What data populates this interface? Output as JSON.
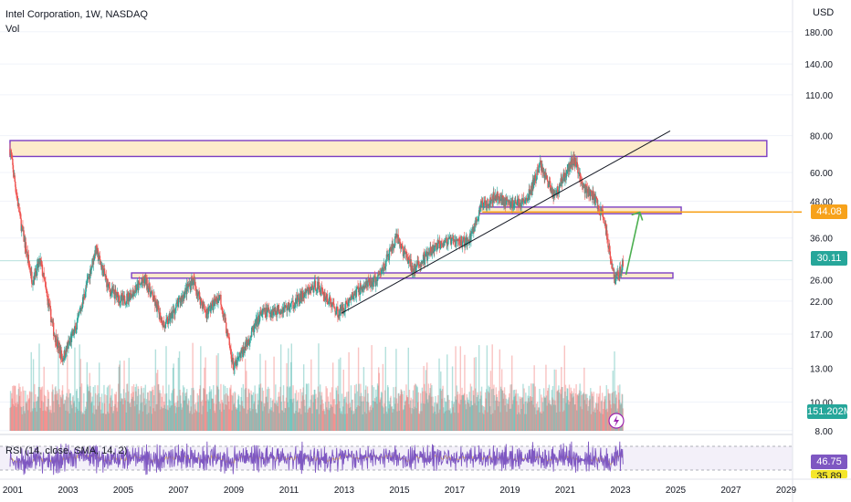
{
  "header": {
    "title": "Intel Corporation, 1W, NASDAQ",
    "volume_label": "Vol",
    "currency": "USD"
  },
  "rsi_label": "RSI (14, close, SMA, 14, 2)",
  "colors": {
    "up": "#26a69a",
    "down": "#ef5350",
    "zone_fill": "#fde7c2",
    "zone_border": "#7b3fc4",
    "resistance_line": "#f7a21b",
    "arrow": "#4caf50",
    "rsi_line": "#7e57c2",
    "rsi_signal": "#f0c330",
    "last_price": "#26a69a",
    "volume_tag": "#26a69a",
    "rsi_tag": "#7e57c2"
  },
  "chart_data": {
    "type": "candlestick",
    "title": "Intel Corporation, 1W, NASDAQ",
    "y_scale": "log",
    "y_unit": "USD",
    "y_ticks": [
      "180.00",
      "140.00",
      "110.00",
      "80.00",
      "60.00",
      "48.00",
      "36.00",
      "26.00",
      "22.00",
      "17.00",
      "13.00",
      "10.00",
      "8.00"
    ],
    "x_ticks": [
      "2001",
      "2003",
      "2005",
      "2007",
      "2009",
      "2011",
      "2013",
      "2015",
      "2017",
      "2019",
      "2021",
      "2023",
      "2025",
      "2027",
      "2029"
    ],
    "price_path": [
      {
        "date": 2000.9,
        "close": 72
      },
      {
        "date": 2001.3,
        "close": 40
      },
      {
        "date": 2001.7,
        "close": 26
      },
      {
        "date": 2002.0,
        "close": 30
      },
      {
        "date": 2002.5,
        "close": 17
      },
      {
        "date": 2002.8,
        "close": 14
      },
      {
        "date": 2003.3,
        "close": 18
      },
      {
        "date": 2004.0,
        "close": 33
      },
      {
        "date": 2004.5,
        "close": 24
      },
      {
        "date": 2005.0,
        "close": 22
      },
      {
        "date": 2005.8,
        "close": 26
      },
      {
        "date": 2006.5,
        "close": 18
      },
      {
        "date": 2007.5,
        "close": 26
      },
      {
        "date": 2008.0,
        "close": 20
      },
      {
        "date": 2008.5,
        "close": 23
      },
      {
        "date": 2009.0,
        "close": 13
      },
      {
        "date": 2009.5,
        "close": 16
      },
      {
        "date": 2010.0,
        "close": 20
      },
      {
        "date": 2011.0,
        "close": 21
      },
      {
        "date": 2012.0,
        "close": 25
      },
      {
        "date": 2012.8,
        "close": 20
      },
      {
        "date": 2013.5,
        "close": 24
      },
      {
        "date": 2014.2,
        "close": 26
      },
      {
        "date": 2014.9,
        "close": 36
      },
      {
        "date": 2015.5,
        "close": 28
      },
      {
        "date": 2016.5,
        "close": 35
      },
      {
        "date": 2017.5,
        "close": 35
      },
      {
        "date": 2018.0,
        "close": 47
      },
      {
        "date": 2018.5,
        "close": 50
      },
      {
        "date": 2019.0,
        "close": 47
      },
      {
        "date": 2019.6,
        "close": 48
      },
      {
        "date": 2020.1,
        "close": 64
      },
      {
        "date": 2020.6,
        "close": 50
      },
      {
        "date": 2021.3,
        "close": 67
      },
      {
        "date": 2021.7,
        "close": 53
      },
      {
        "date": 2022.0,
        "close": 50
      },
      {
        "date": 2022.4,
        "close": 42
      },
      {
        "date": 2022.8,
        "close": 26
      },
      {
        "date": 2023.0,
        "close": 28
      },
      {
        "date": 2023.1,
        "close": 30.11
      }
    ],
    "zones": [
      {
        "from_date": 2000.9,
        "to_date": 2028.3,
        "low": 68,
        "high": 77
      },
      {
        "from_date": 2017.9,
        "to_date": 2025.2,
        "low": 43.5,
        "high": 45.8
      },
      {
        "from_date": 2005.3,
        "to_date": 2024.9,
        "low": 26.3,
        "high": 27.4
      }
    ],
    "trendline": {
      "from": {
        "date": 2012.9,
        "price": 20
      },
      "to": {
        "date": 2024.8,
        "price": 83
      }
    },
    "resistance_level": 44.08,
    "projection_arrow": {
      "from": {
        "date": 2023.2,
        "price": 27
      },
      "to": {
        "date": 2023.7,
        "price": 44
      }
    },
    "last_price": "30.11",
    "resistance_label": "44.08",
    "volume": {
      "last_value": "151.202M"
    },
    "rsi": {
      "value": "46.75",
      "second_value": "35.89",
      "upper": 70,
      "lower": 30
    }
  }
}
